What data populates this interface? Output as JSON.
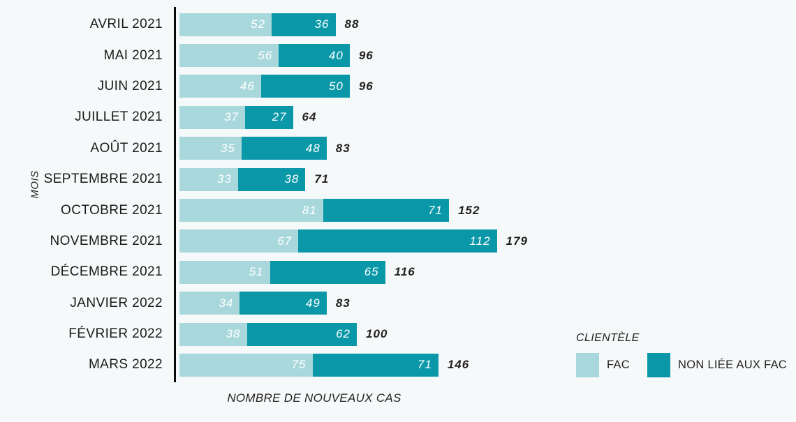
{
  "chart_data": {
    "type": "bar",
    "orientation": "horizontal",
    "stacked": true,
    "title": "",
    "xlabel": "NOMBRE DE NOUVEAUX CAS",
    "ylabel": "MOIS",
    "legend_title": "CLIENTÈLE",
    "legend_position": "bottom-right",
    "grid": false,
    "xlim": [
      0,
      180
    ],
    "categories": [
      "AVRIL 2021",
      "MAI 2021",
      "JUIN 2021",
      "JUILLET 2021",
      "AOÛT 2021",
      "SEPTEMBRE 2021",
      "OCTOBRE 2021",
      "NOVEMBRE 2021",
      "DÉCEMBRE 2021",
      "JANVIER 2022",
      "FÉVRIER 2022",
      "MARS 2022"
    ],
    "series": [
      {
        "name": "FAC",
        "color": "#a9d8dc",
        "values": [
          52,
          56,
          46,
          37,
          35,
          33,
          81,
          67,
          51,
          34,
          38,
          75
        ]
      },
      {
        "name": "NON LIÉE AUX FAC",
        "color": "#0a98a8",
        "values": [
          36,
          40,
          50,
          27,
          48,
          38,
          71,
          112,
          65,
          49,
          62,
          71
        ]
      }
    ],
    "totals": [
      88,
      96,
      96,
      64,
      83,
      71,
      152,
      179,
      116,
      83,
      100,
      146
    ]
  },
  "colors": {
    "background": "#f6f9fa",
    "axis": "#0a0a0a",
    "text": "#231f20",
    "bar_value_text": "#ffffff"
  }
}
